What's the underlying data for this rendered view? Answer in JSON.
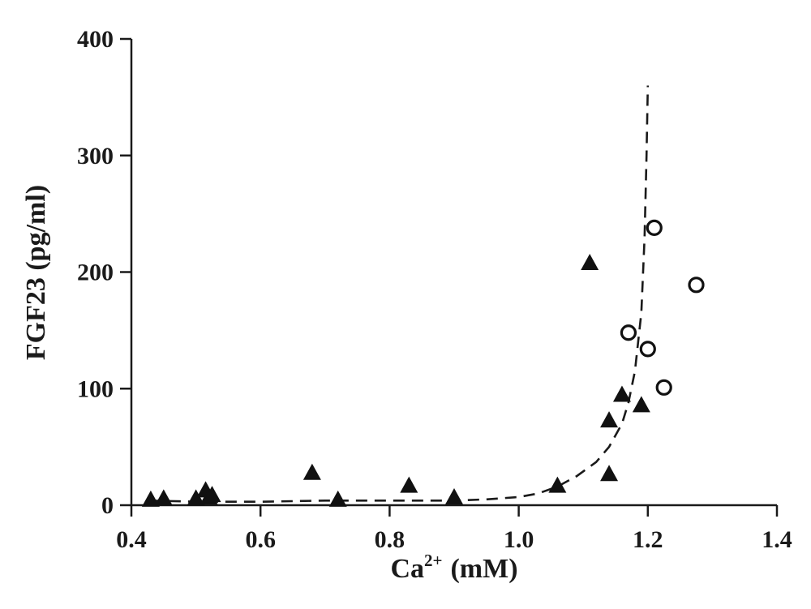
{
  "chart_data": {
    "type": "scatter",
    "title": "",
    "xlabel": "Ca",
    "xlabel_sup": "2+",
    "xlabel_unit": "(mM)",
    "ylabel": "FGF23 (pg/ml)",
    "xlim": [
      0.4,
      1.4
    ],
    "ylim": [
      0,
      400
    ],
    "x_ticks": [
      0.4,
      0.6,
      0.8,
      1.0,
      1.2,
      1.4
    ],
    "x_tick_labels": [
      "0.4",
      "0.6",
      "0.8",
      "1.0",
      "1.2",
      "1.4"
    ],
    "y_ticks": [
      0,
      100,
      200,
      300,
      400
    ],
    "y_tick_labels": [
      "0",
      "100",
      "200",
      "300",
      "400"
    ],
    "grid": false,
    "legend": "none",
    "series": [
      {
        "marker": "filled-triangle",
        "color": "#111111",
        "points": [
          {
            "x": 0.43,
            "y": 5
          },
          {
            "x": 0.45,
            "y": 6
          },
          {
            "x": 0.5,
            "y": 6
          },
          {
            "x": 0.515,
            "y": 13
          },
          {
            "x": 0.52,
            "y": 7
          },
          {
            "x": 0.525,
            "y": 9
          },
          {
            "x": 0.68,
            "y": 28
          },
          {
            "x": 0.72,
            "y": 5
          },
          {
            "x": 0.83,
            "y": 17
          },
          {
            "x": 0.9,
            "y": 7
          },
          {
            "x": 1.06,
            "y": 17
          },
          {
            "x": 1.11,
            "y": 208
          },
          {
            "x": 1.14,
            "y": 73
          },
          {
            "x": 1.14,
            "y": 27
          },
          {
            "x": 1.16,
            "y": 95
          },
          {
            "x": 1.19,
            "y": 86
          }
        ]
      },
      {
        "marker": "open-circle",
        "color": "#111111",
        "points": [
          {
            "x": 1.17,
            "y": 148
          },
          {
            "x": 1.2,
            "y": 134
          },
          {
            "x": 1.21,
            "y": 238
          },
          {
            "x": 1.225,
            "y": 101
          },
          {
            "x": 1.275,
            "y": 189
          }
        ]
      }
    ],
    "fit_curve": {
      "style": "dashed",
      "color": "#1a1a1a",
      "points": [
        {
          "x": 0.43,
          "y": 4
        },
        {
          "x": 0.5,
          "y": 3
        },
        {
          "x": 0.6,
          "y": 3
        },
        {
          "x": 0.7,
          "y": 4
        },
        {
          "x": 0.8,
          "y": 4
        },
        {
          "x": 0.9,
          "y": 4
        },
        {
          "x": 0.95,
          "y": 5
        },
        {
          "x": 1.0,
          "y": 7
        },
        {
          "x": 1.03,
          "y": 10
        },
        {
          "x": 1.06,
          "y": 16
        },
        {
          "x": 1.09,
          "y": 25
        },
        {
          "x": 1.12,
          "y": 37
        },
        {
          "x": 1.14,
          "y": 50
        },
        {
          "x": 1.16,
          "y": 70
        },
        {
          "x": 1.17,
          "y": 88
        },
        {
          "x": 1.18,
          "y": 115
        },
        {
          "x": 1.19,
          "y": 165
        },
        {
          "x": 1.195,
          "y": 230
        },
        {
          "x": 1.198,
          "y": 300
        },
        {
          "x": 1.2,
          "y": 360
        }
      ]
    }
  }
}
